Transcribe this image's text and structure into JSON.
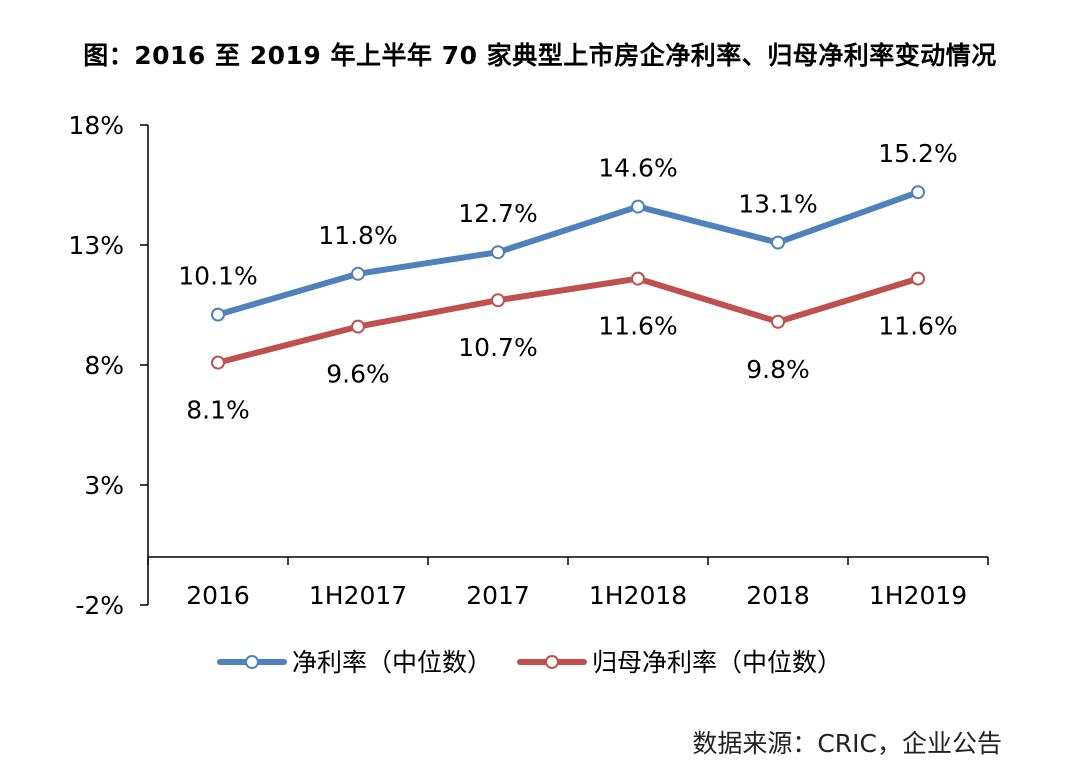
{
  "title": "图：2016 至 2019 年上半年 70 家典型上市房企净利率、归母净利率变动情况",
  "source": "数据来源：CRIC，企业公告",
  "colors": {
    "net_margin": "#4F81BD",
    "parent_net_margin": "#C0504D",
    "axis": "#000000"
  },
  "chart_data": {
    "type": "line",
    "title": "图：2016 至 2019 年上半年 70 家典型上市房企净利率、归母净利率变动情况",
    "categories": [
      "2016",
      "1H2017",
      "2017",
      "1H2018",
      "2018",
      "1H2019"
    ],
    "y_ticks": [
      "18%",
      "13%",
      "8%",
      "3%",
      "-2%"
    ],
    "ylim": [
      -2,
      18
    ],
    "grid": false,
    "legend_position": "bottom",
    "series": [
      {
        "name": "净利率（中位数）",
        "values": [
          10.1,
          11.8,
          12.7,
          14.6,
          13.1,
          15.2
        ],
        "labels": [
          "10.1%",
          "11.8%",
          "12.7%",
          "14.6%",
          "13.1%",
          "15.2%"
        ],
        "label_position": "above"
      },
      {
        "name": "归母净利率（中位数）",
        "values": [
          8.1,
          9.6,
          10.7,
          11.6,
          9.8,
          11.6
        ],
        "labels": [
          "8.1%",
          "9.6%",
          "10.7%",
          "11.6%",
          "9.8%",
          "11.6%"
        ],
        "label_position": "below"
      }
    ]
  }
}
